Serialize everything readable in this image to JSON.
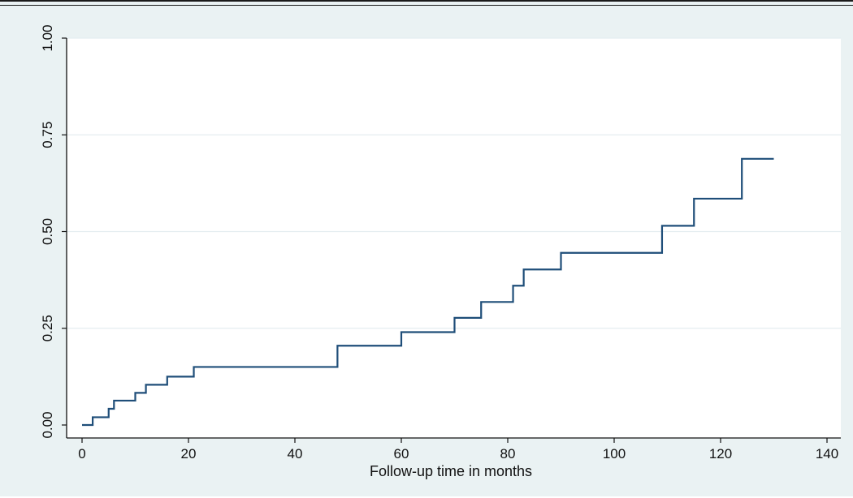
{
  "chart_data": {
    "type": "line",
    "step": true,
    "xlabel": "Follow-up time in months",
    "ylabel": "",
    "xlim": [
      0,
      140
    ],
    "ylim": [
      0,
      1
    ],
    "x_ticks": [
      0,
      20,
      40,
      60,
      80,
      100,
      120,
      140
    ],
    "y_ticks": [
      0,
      0.25,
      0.5,
      0.75,
      1.0
    ],
    "x_tick_labels": [
      "0",
      "20",
      "40",
      "60",
      "80",
      "100",
      "120",
      "140"
    ],
    "y_tick_labels": [
      "0.00",
      "0.25",
      "0.50",
      "0.75",
      "1.00"
    ],
    "grid": "horizontal",
    "series": [
      {
        "x": [
          0,
          2,
          5,
          6,
          10,
          12,
          16,
          21,
          48,
          60,
          70,
          75,
          81,
          83,
          90,
          109,
          115,
          124,
          130
        ],
        "y": [
          0,
          0.02,
          0.042,
          0.063,
          0.083,
          0.104,
          0.125,
          0.15,
          0.205,
          0.24,
          0.277,
          0.318,
          0.36,
          0.402,
          0.445,
          0.515,
          0.585,
          0.688,
          0.688
        ]
      }
    ],
    "colors": {
      "background": "#eaf2f3",
      "plot_area": "#ffffff",
      "line": "#1f4e79",
      "grid": "#e4edf0"
    }
  }
}
